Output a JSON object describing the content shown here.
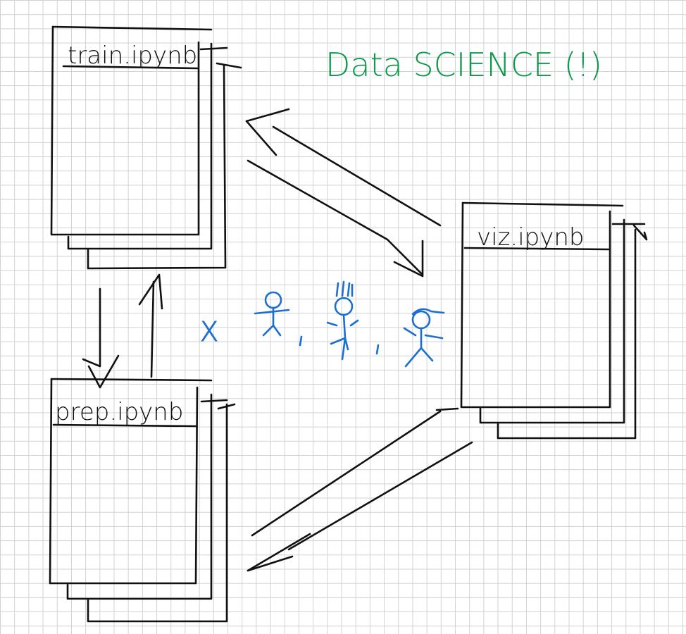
{
  "title": "Data SCIENCE (!)",
  "notebooks": {
    "train": "train.ipynb",
    "prep": "prep.ipynb",
    "viz": "viz.ipynb"
  },
  "people_label": "X",
  "colors": {
    "ink": "#111111",
    "title": "#0e9a4a",
    "people": "#1c6fd1",
    "grid": "#cfd2d6"
  }
}
